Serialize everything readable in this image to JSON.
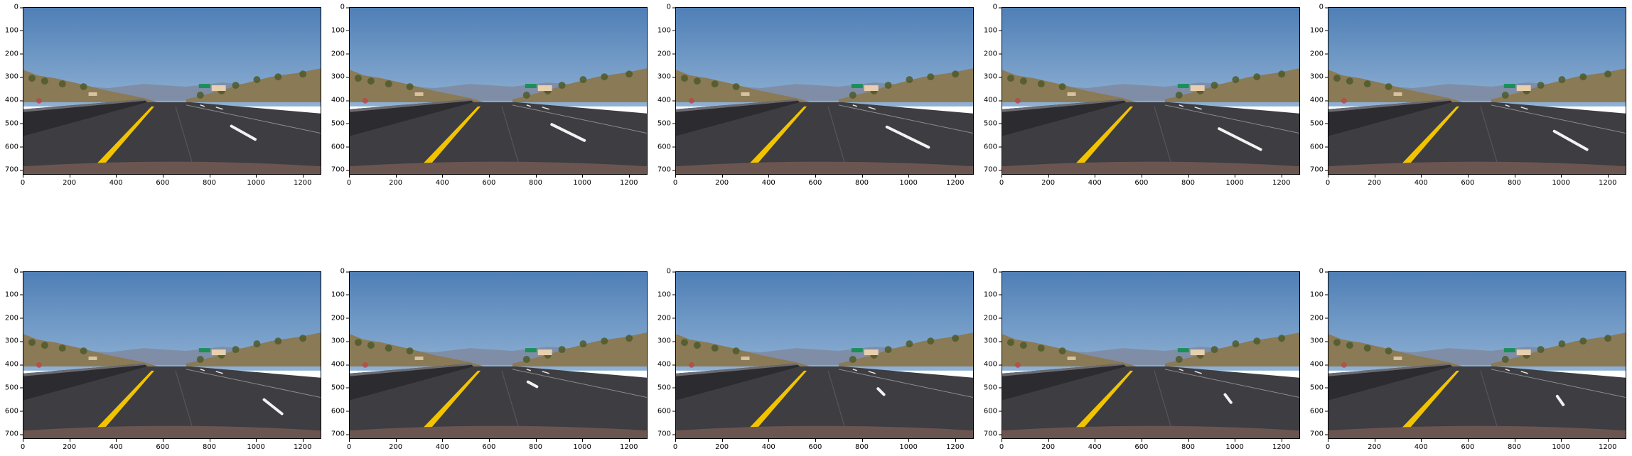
{
  "figure": {
    "rows": 2,
    "cols": 5,
    "panels": [
      {
        "id": 1,
        "white_dash_x": [
          0.7,
          0.78
        ],
        "yellow": "#f2c400"
      },
      {
        "id": 2,
        "white_dash_x": [
          0.68,
          0.79
        ],
        "yellow": "#f2c400"
      },
      {
        "id": 3,
        "white_dash_x": [
          0.71,
          0.85
        ],
        "yellow": "#f2c400"
      },
      {
        "id": 4,
        "white_dash_x": [
          0.73,
          0.87
        ],
        "yellow": "#f2c400"
      },
      {
        "id": 5,
        "white_dash_x": [
          0.76,
          0.87
        ],
        "yellow": "#f2c400"
      },
      {
        "id": 6,
        "white_dash_x": [
          0.81,
          0.87
        ],
        "yellow": "#f2c400"
      },
      {
        "id": 7,
        "white_dash_x": [
          0.6,
          0.63
        ],
        "yellow": "#f2c400"
      },
      {
        "id": 8,
        "white_dash_x": [
          0.68,
          0.7
        ],
        "yellow": "#f2c400"
      },
      {
        "id": 9,
        "white_dash_x": [
          0.75,
          0.77
        ],
        "yellow": "#f2c400"
      },
      {
        "id": 10,
        "white_dash_x": [
          0.77,
          0.79
        ],
        "yellow": "#f2c400"
      }
    ],
    "axes": {
      "x_ticks": [
        "0",
        "200",
        "400",
        "600",
        "800",
        "1000",
        "1200"
      ],
      "y_ticks": [
        "0",
        "100",
        "200",
        "300",
        "400",
        "500",
        "600",
        "700"
      ]
    },
    "colors": {
      "sky_top": "#4f7fb6",
      "sky_bottom": "#8fb1d4",
      "hill": "#8a7a55",
      "road": "#3d3d42",
      "barrier": "#2b2b30",
      "sign_green": "#1a8f5a"
    }
  }
}
